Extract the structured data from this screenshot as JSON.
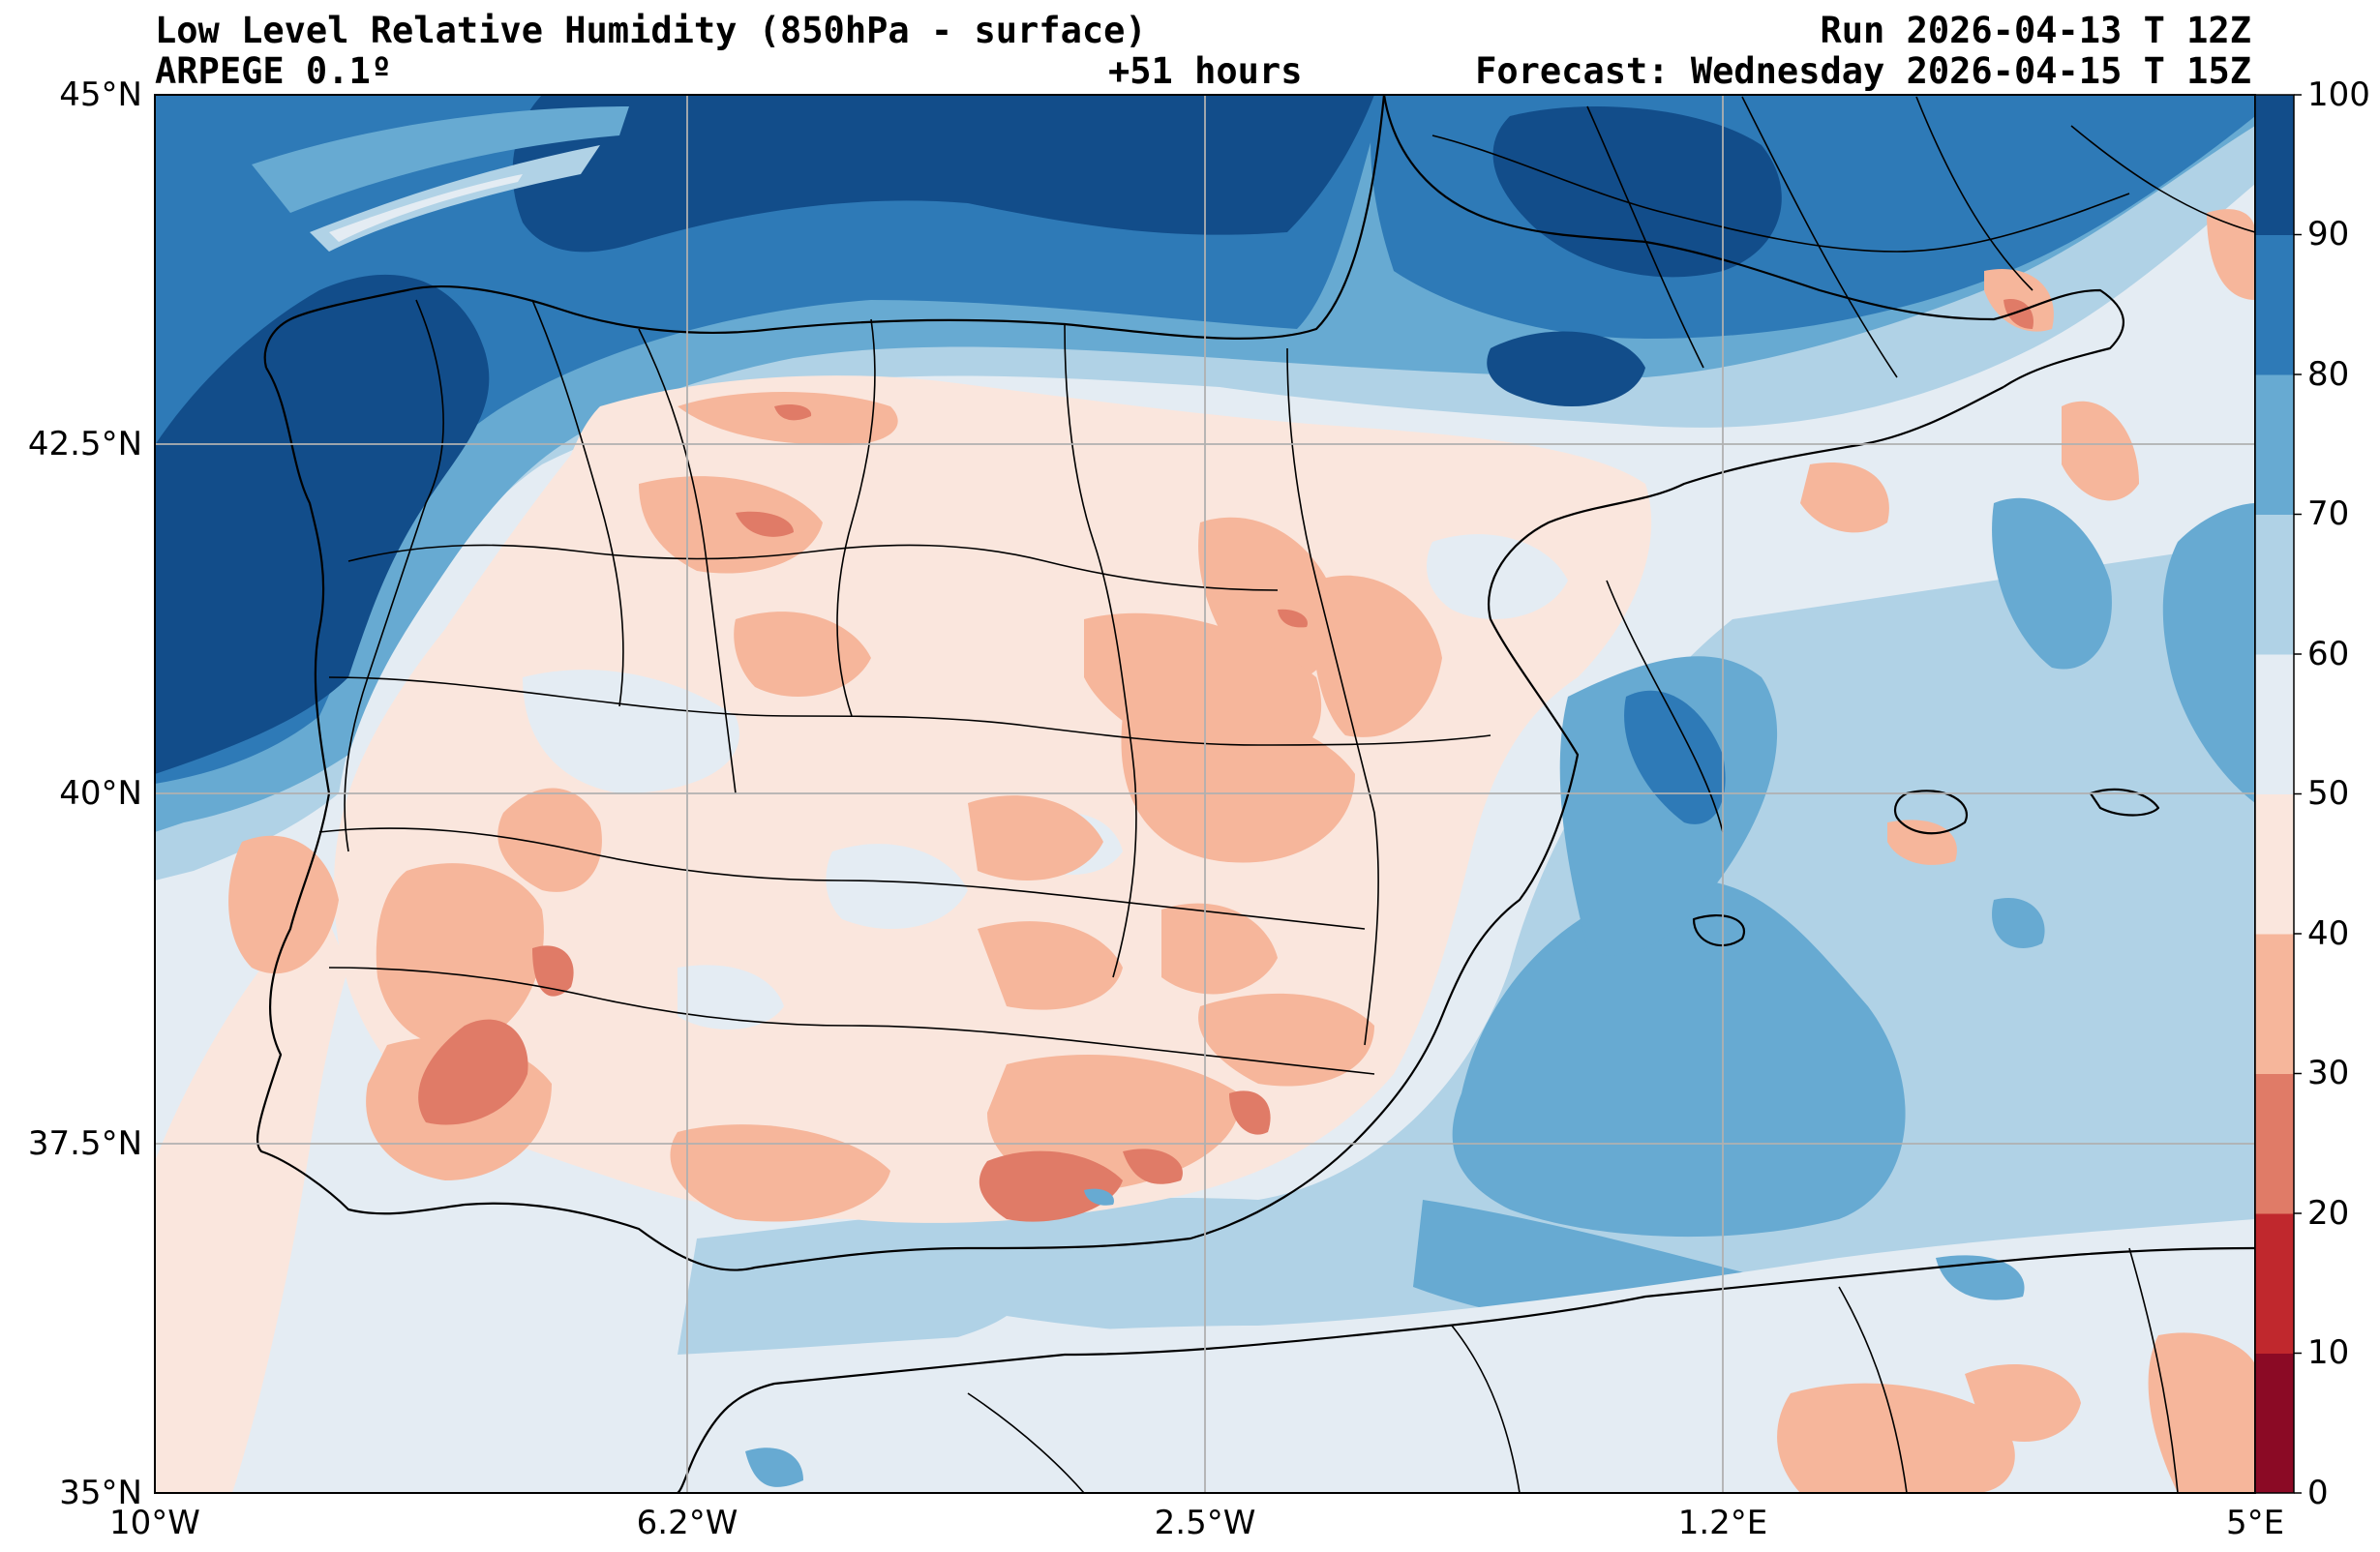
{
  "header": {
    "title_left_1": "Low Level Relative Humidity (850hPa - surface)",
    "title_left_2": "ARPEGE 0.1º",
    "title_center": "+51 hours",
    "title_right_1": "Run 2026-04-13 T 12Z",
    "title_right_2": "Forecast: Wednesday 2026-04-15 T 15Z"
  },
  "map": {
    "lat_labels": [
      "45°N",
      "42.5°N",
      "40°N",
      "37.5°N",
      "35°N"
    ],
    "lon_labels": [
      "10°W",
      "6.2°W",
      "2.5°W",
      "1.2°E",
      "5°E"
    ],
    "lat_range": [
      35,
      45
    ],
    "lon_range": [
      -10,
      5
    ]
  },
  "colorbar": {
    "ticks": [
      "0",
      "10",
      "20",
      "30",
      "40",
      "50",
      "60",
      "70",
      "80",
      "90",
      "100"
    ],
    "colors": [
      "#8b0a25",
      "#c0282d",
      "#e07b67",
      "#f6b69b",
      "#fae6dd",
      "#e4ecf3",
      "#b0d2e6",
      "#67aad2",
      "#2e7ab7",
      "#124d8a"
    ]
  }
}
